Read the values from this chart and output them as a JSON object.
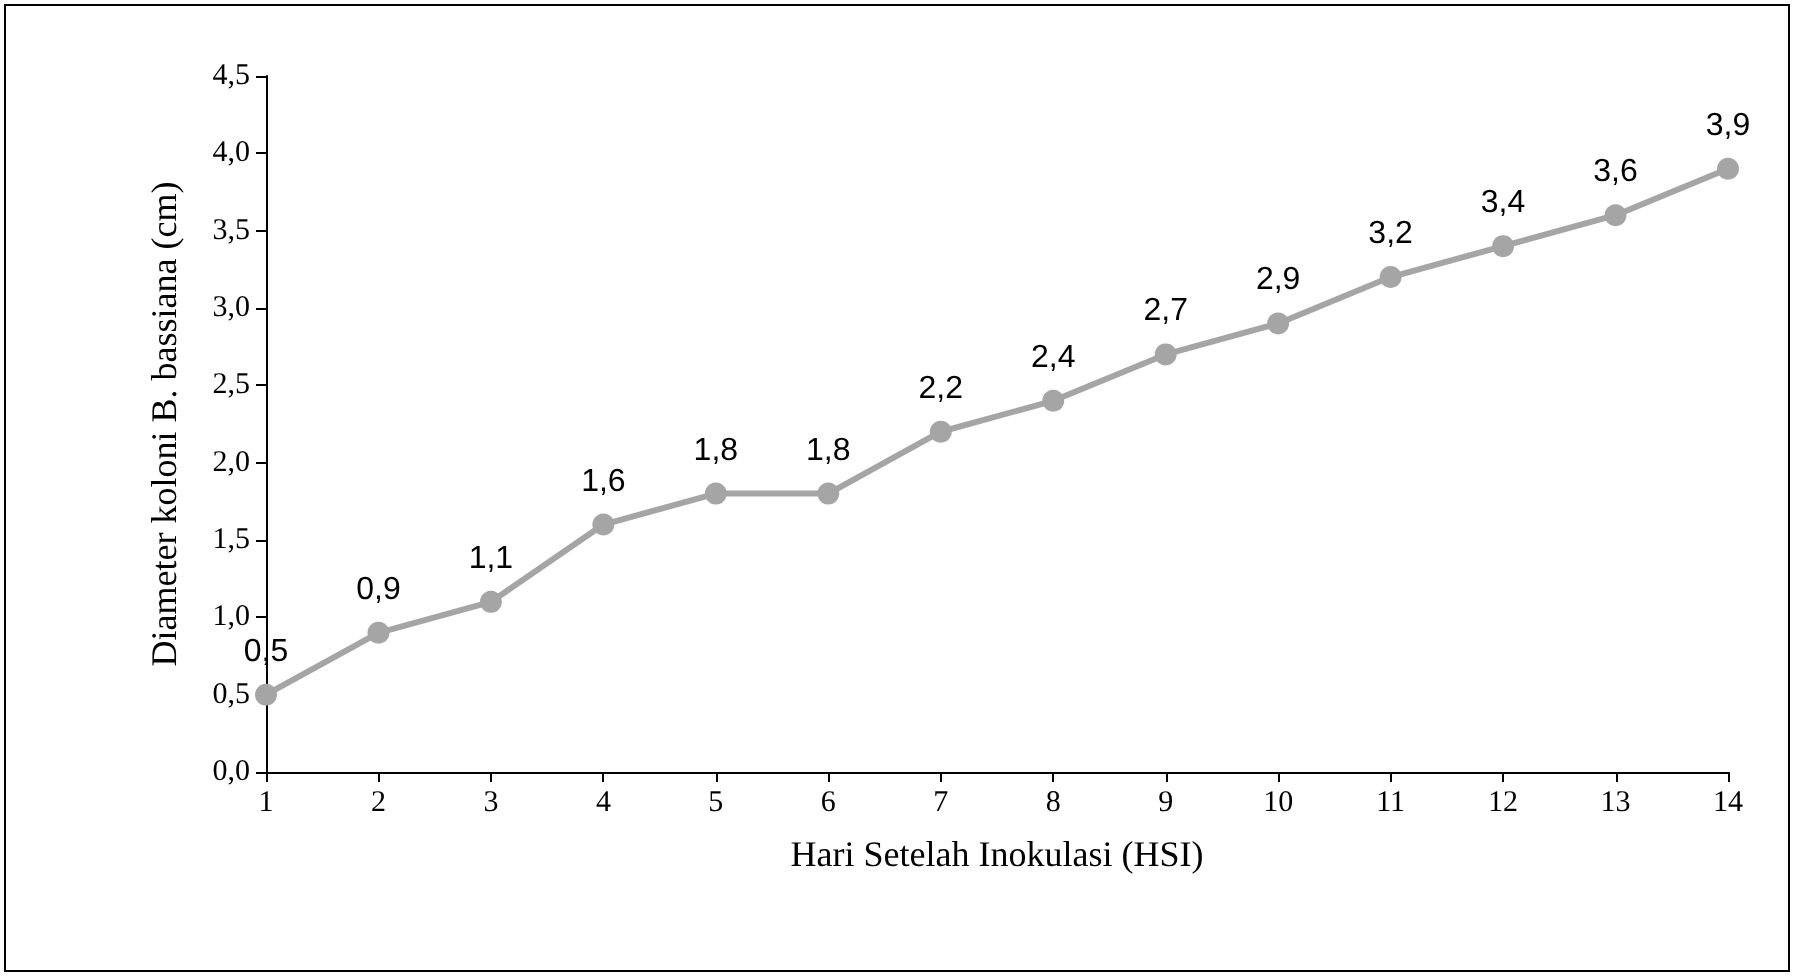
{
  "chart_data": {
    "type": "line",
    "xlabel": "Hari Setelah Inokulasi (HSI)",
    "ylabel": "Diameter koloni B. bassiana (cm)",
    "x": [
      1,
      2,
      3,
      4,
      5,
      6,
      7,
      8,
      9,
      10,
      11,
      12,
      13,
      14
    ],
    "series": [
      {
        "color": "#a5a5a5",
        "values": [
          0.5,
          0.9,
          1.1,
          1.6,
          1.8,
          1.8,
          2.2,
          2.4,
          2.7,
          2.9,
          3.2,
          3.4,
          3.6,
          3.9
        ],
        "value_labels": [
          "0,5",
          "0,9",
          "1,1",
          "1,6",
          "1,8",
          "1,8",
          "2,2",
          "2,4",
          "2,7",
          "2,9",
          "3,2",
          "3,4",
          "3,6",
          "3,9"
        ]
      }
    ],
    "xlim": [
      1,
      14
    ],
    "xticks": [
      1,
      2,
      3,
      4,
      5,
      6,
      7,
      8,
      9,
      10,
      11,
      12,
      13,
      14
    ],
    "ylim": [
      0,
      4.5
    ],
    "yticks": [
      {
        "value": 0,
        "label": "0,0"
      },
      {
        "value": 0.5,
        "label": "0,5"
      },
      {
        "value": 1,
        "label": "1,0"
      },
      {
        "value": 1.5,
        "label": "1,5"
      },
      {
        "value": 2,
        "label": "2,0"
      },
      {
        "value": 2.5,
        "label": "2,5"
      },
      {
        "value": 3,
        "label": "3,0"
      },
      {
        "value": 3.5,
        "label": "3,5"
      },
      {
        "value": 4,
        "label": "4,0"
      },
      {
        "value": 4.5,
        "label": "4,5"
      }
    ],
    "grid": false,
    "marker": "circle",
    "line_style": "solid"
  }
}
